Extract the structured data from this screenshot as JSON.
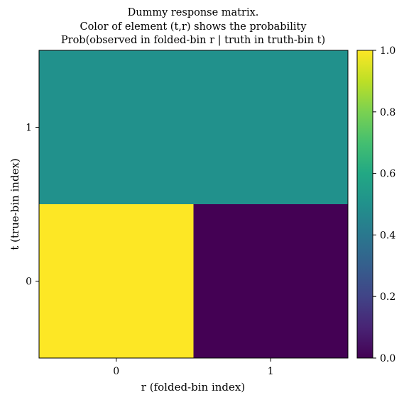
{
  "chart_data": {
    "type": "heatmap",
    "title": [
      "Dummy response matrix.",
      "Color of element (t,r) shows the probability",
      "Prob(observed in folded-bin r | truth in truth-bin t)"
    ],
    "xlabel": "r (folded-bin index)",
    "ylabel": "t (true-bin index)",
    "x_categories": [
      "0",
      "1"
    ],
    "y_categories": [
      "0",
      "1"
    ],
    "matrix": [
      [
        1.0,
        0.0
      ],
      [
        0.5,
        0.5
      ]
    ],
    "colormap": "viridis",
    "colorbar": {
      "range": [
        0.0,
        1.0
      ],
      "ticks": [
        "0.0",
        "0.2",
        "0.4",
        "0.6",
        "0.8",
        "1.0"
      ]
    },
    "colors": {
      "value_0": "#440154",
      "value_0_5": "#21918c",
      "value_1": "#fde725"
    }
  }
}
